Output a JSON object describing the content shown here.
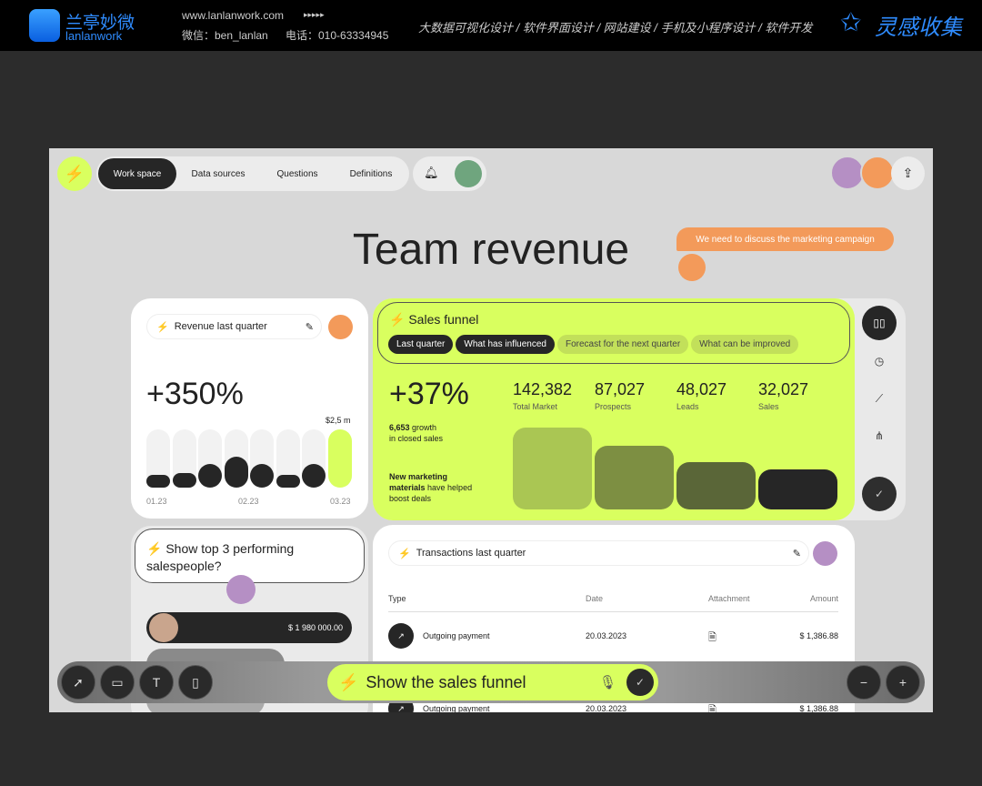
{
  "banner": {
    "brand_cn": "兰亭妙微",
    "brand_en": "lanlanwork",
    "site": "www.lanlanwork.com",
    "arrows": "▸▸▸▸▸",
    "wechat": "微信：ben_lanlan",
    "phone": "电话：010-63334945",
    "services": "大数据可视化设计 / 软件界面设计 / 网站建设 / 手机及小程序设计 / 软件开发",
    "collect": "灵感收集"
  },
  "nav": {
    "items": [
      {
        "label": "Work space",
        "active": true
      },
      {
        "label": "Data sources"
      },
      {
        "label": "Questions"
      },
      {
        "label": "Definitions"
      }
    ]
  },
  "title": "Team revenue",
  "comment": "We need to discuss the marketing campaign",
  "revenue": {
    "title": "Revenue last quarter",
    "value": "+350%",
    "top_label": "$2,5 m",
    "x_labels": [
      "01.23",
      "02.23",
      "03.23"
    ],
    "bars": [
      0.17,
      0.25,
      0.4,
      0.53,
      0.4,
      0.12,
      0.4,
      1.0
    ]
  },
  "funnel": {
    "title": "Sales funnel",
    "chips": [
      {
        "label": "Last quarter",
        "active": true
      },
      {
        "label": "What has influenced",
        "active": true
      },
      {
        "label": "Forecast for the next quarter"
      },
      {
        "label": "What can be improved"
      }
    ],
    "value": "+37%",
    "growth_bold": "6,653",
    "growth_rest": " growth",
    "growth_line2": "in closed sales",
    "note_bold": "New marketing materials",
    "note_rest": " have helped boost deals",
    "stages": [
      {
        "value": "142,382",
        "label": "Total Market",
        "color": "#aac653"
      },
      {
        "value": "87,027",
        "label": "Prospects",
        "color": "#7d8f42"
      },
      {
        "value": "48,027",
        "label": "Leads",
        "color": "#5a6638"
      },
      {
        "value": "32,027",
        "label": "Sales",
        "color": "#262626"
      }
    ]
  },
  "question": {
    "text": "Show top 3 performing salespeople?",
    "amount": "$ 1 980 000.00"
  },
  "transactions": {
    "title": "Transactions last quarter",
    "headers": [
      "Type",
      "Date",
      "Attachment",
      "Amount"
    ],
    "rows": [
      {
        "type": "Outgoing payment",
        "date": "20.03.2023",
        "amount": "$ 1,386.88"
      },
      {
        "type": "Outgoing payment",
        "date": "20.03.2023",
        "amount": "$ 1,386.88"
      }
    ]
  },
  "prompt": {
    "text": "Show the sales funnel"
  },
  "colors": {
    "accent": "#d9ff5f",
    "dark": "#262626",
    "orange": "#f39a5a"
  }
}
